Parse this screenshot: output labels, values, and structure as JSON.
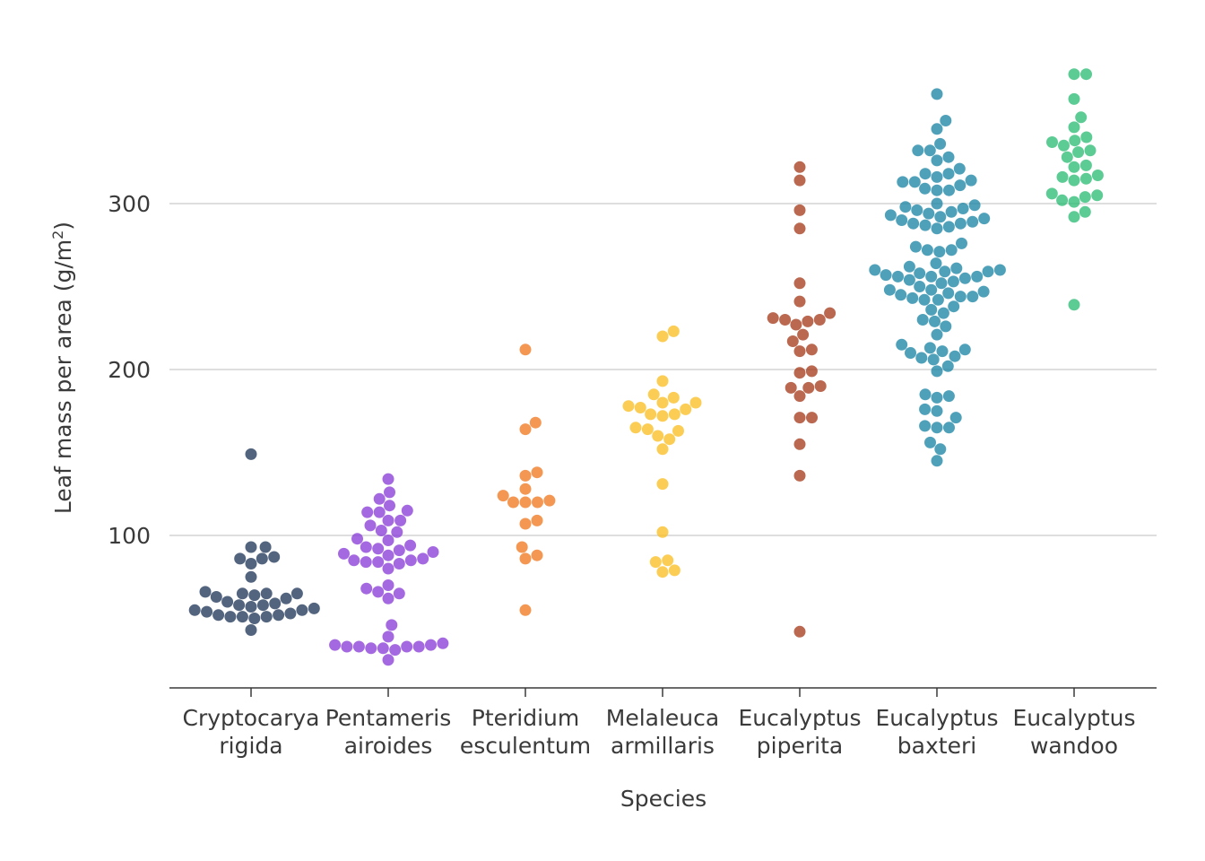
{
  "chart_data": {
    "type": "scatter",
    "subtype": "beeswarm",
    "xlabel": "Species",
    "ylabel": "Leaf mass per area (g/m",
    "ylabel_sup": "2",
    "ylabel_end": ")",
    "ylim": [
      10,
      380
    ],
    "yticks": [
      100,
      200,
      300
    ],
    "grid": "horizontal",
    "legend": "none",
    "categories": [
      [
        "Cryptocarya",
        "rigida"
      ],
      [
        "Pentameris",
        "airoides"
      ],
      [
        "Pteridium",
        "esculentum"
      ],
      [
        "Melaleuca",
        "armillaris"
      ],
      [
        "Eucalyptus",
        "piperita"
      ],
      [
        "Eucalyptus",
        "baxteri"
      ],
      [
        "Eucalyptus",
        "wandoo"
      ]
    ],
    "colors": [
      "#22385a",
      "#8a3fd8",
      "#f07a22",
      "#fbbf24",
      "#a63d1f",
      "#1d87a6",
      "#2ebd76"
    ],
    "series": [
      {
        "values": [
          149,
          93,
          93,
          87,
          86,
          86,
          83,
          75,
          66,
          65,
          65,
          65,
          64,
          63,
          62,
          60,
          59,
          58,
          58,
          57,
          56,
          55,
          55,
          54,
          53,
          52,
          52,
          51,
          51,
          51,
          50,
          43
        ]
      },
      {
        "values": [
          134,
          126,
          122,
          118,
          115,
          114,
          114,
          109,
          109,
          106,
          103,
          102,
          98,
          97,
          94,
          93,
          92,
          91,
          90,
          89,
          88,
          86,
          85,
          85,
          84,
          84,
          83,
          80,
          70,
          68,
          66,
          65,
          62,
          46,
          39,
          35,
          34,
          34,
          33,
          33,
          33,
          33,
          32,
          32,
          31,
          25
        ]
      },
      {
        "values": [
          212,
          168,
          164,
          138,
          136,
          128,
          121,
          120,
          120,
          120,
          124,
          109,
          107,
          93,
          88,
          86,
          55
        ]
      },
      {
        "values": [
          223,
          220,
          193,
          185,
          183,
          180,
          180,
          178,
          177,
          176,
          173,
          173,
          172,
          165,
          164,
          163,
          160,
          158,
          152,
          131,
          102,
          85,
          84,
          79,
          78
        ]
      },
      {
        "values": [
          322,
          314,
          296,
          285,
          252,
          241,
          234,
          231,
          230,
          230,
          229,
          227,
          221,
          217,
          212,
          211,
          199,
          198,
          190,
          189,
          189,
          184,
          171,
          171,
          155,
          136,
          42
        ]
      },
      {
        "values": [
          366,
          350,
          345,
          336,
          332,
          332,
          328,
          326,
          321,
          318,
          318,
          316,
          314,
          313,
          313,
          311,
          309,
          308,
          308,
          300,
          299,
          298,
          297,
          296,
          295,
          294,
          293,
          292,
          291,
          290,
          289,
          288,
          288,
          287,
          286,
          285,
          276,
          274,
          272,
          272,
          271,
          264,
          262,
          261,
          260,
          260,
          259,
          259,
          258,
          257,
          256,
          256,
          256,
          255,
          254,
          253,
          252,
          250,
          248,
          248,
          247,
          246,
          245,
          244,
          244,
          243,
          242,
          242,
          238,
          236,
          234,
          230,
          229,
          226,
          221,
          215,
          213,
          212,
          211,
          210,
          208,
          207,
          206,
          202,
          199,
          185,
          184,
          183,
          176,
          175,
          171,
          166,
          165,
          165,
          156,
          152,
          145
        ]
      },
      {
        "values": [
          378,
          378,
          363,
          352,
          346,
          340,
          338,
          337,
          335,
          332,
          331,
          328,
          323,
          322,
          317,
          316,
          315,
          314,
          306,
          305,
          304,
          302,
          301,
          295,
          292,
          239
        ]
      }
    ]
  }
}
